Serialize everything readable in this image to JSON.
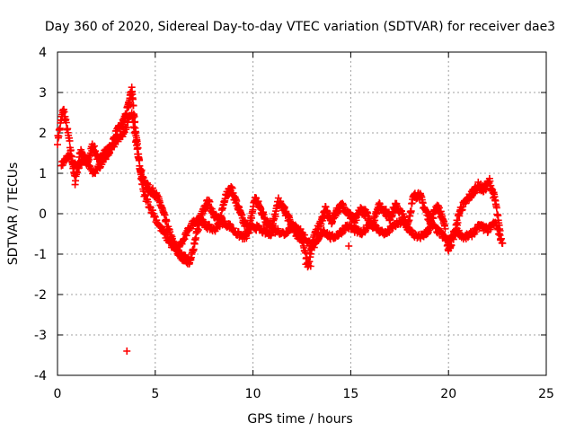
{
  "chart_data": {
    "type": "scatter",
    "title": "Day 360 of 2020, Sidereal Day-to-day VTEC variation (SDTVAR) for receiver dae3",
    "xlabel": "GPS time / hours",
    "ylabel": "SDTVAR / TECUs",
    "xlim": [
      0,
      25
    ],
    "ylim": [
      -4,
      4
    ],
    "xticks": [
      0,
      5,
      10,
      15,
      20,
      25
    ],
    "yticks": [
      -4,
      -3,
      -2,
      -1,
      0,
      1,
      2,
      3,
      4
    ],
    "grid": true,
    "marker": "plus",
    "color": "#ff0000",
    "series": [
      {
        "name": "SDTVAR",
        "trace_x": [
          0.0,
          0.3,
          0.6,
          0.9,
          1.2,
          1.5,
          1.8,
          2.1,
          2.4,
          2.7,
          3.0,
          3.3,
          3.6,
          3.8,
          4.0,
          4.2,
          4.4,
          4.7,
          5.0,
          5.3,
          5.6,
          5.9,
          6.2,
          6.5,
          6.8,
          7.1,
          7.4,
          7.7,
          8.0,
          8.3,
          8.6,
          8.9,
          9.2,
          9.5,
          9.8,
          10.1,
          10.4,
          10.7,
          11.0,
          11.3,
          11.6,
          11.9,
          12.2,
          12.5,
          12.8,
          13.1,
          13.4,
          13.7,
          14.0,
          14.3,
          14.6,
          14.9,
          15.2,
          15.5,
          15.8,
          16.1,
          16.4,
          16.7,
          17.0,
          17.3,
          17.6,
          17.9,
          18.2,
          18.5,
          18.8,
          19.1,
          19.4,
          19.7,
          20.0,
          20.3,
          20.6,
          20.9,
          21.2,
          21.5,
          21.8,
          22.1,
          22.4,
          22.7
        ],
        "trace_y": [
          1.8,
          2.6,
          1.8,
          0.8,
          1.6,
          1.2,
          1.7,
          1.3,
          1.5,
          1.6,
          2.0,
          2.2,
          2.6,
          3.1,
          2.0,
          1.2,
          0.8,
          0.6,
          0.5,
          0.2,
          -0.3,
          -0.7,
          -1.0,
          -1.1,
          -1.2,
          -0.5,
          0.0,
          0.3,
          0.0,
          -0.2,
          0.5,
          0.6,
          0.2,
          -0.2,
          -0.4,
          0.4,
          0.1,
          -0.2,
          -0.3,
          0.3,
          0.1,
          -0.2,
          -0.5,
          -0.6,
          -1.3,
          -0.6,
          -0.3,
          0.1,
          -0.2,
          0.1,
          0.2,
          0.0,
          -0.2,
          0.1,
          0.0,
          -0.3,
          0.2,
          0.1,
          -0.1,
          0.2,
          0.0,
          -0.3,
          0.4,
          0.5,
          0.1,
          -0.2,
          0.2,
          -0.1,
          -0.9,
          -0.5,
          0.1,
          0.3,
          0.5,
          0.7,
          0.6,
          0.8,
          0.3,
          -0.7
        ],
        "alt_trace_x": [
          0.2,
          0.6,
          1.0,
          1.4,
          1.8,
          2.2,
          2.6,
          3.0,
          3.4,
          3.8,
          4.1,
          4.4,
          4.8,
          5.2,
          5.6,
          6.0,
          6.4,
          6.8,
          7.2,
          7.6,
          8.0,
          8.4,
          8.8,
          9.2,
          9.6,
          10.0,
          10.4,
          10.8,
          11.2,
          11.6,
          12.0,
          12.4,
          12.8,
          13.2,
          13.6,
          14.0,
          14.4,
          14.8,
          15.2,
          15.6,
          16.0,
          16.4,
          16.8,
          17.2,
          17.6,
          18.0,
          18.4,
          18.8,
          19.2,
          19.6,
          20.0,
          20.4,
          20.8,
          21.2,
          21.6,
          22.0,
          22.4,
          22.8
        ],
        "alt_trace_y": [
          1.2,
          1.5,
          1.1,
          1.4,
          1.0,
          1.2,
          1.5,
          1.8,
          2.0,
          2.5,
          1.5,
          0.5,
          0.1,
          -0.3,
          -0.6,
          -0.9,
          -0.7,
          -0.3,
          -0.1,
          -0.3,
          -0.4,
          -0.2,
          -0.3,
          -0.5,
          -0.6,
          -0.3,
          -0.4,
          -0.5,
          -0.4,
          -0.5,
          -0.3,
          -0.4,
          -0.7,
          -0.8,
          -0.4,
          -0.6,
          -0.5,
          -0.3,
          -0.4,
          -0.5,
          -0.2,
          -0.4,
          -0.5,
          -0.3,
          -0.2,
          -0.4,
          -0.6,
          -0.5,
          -0.3,
          -0.5,
          -0.7,
          -0.4,
          -0.6,
          -0.5,
          -0.3,
          -0.4,
          -0.2,
          -0.8
        ],
        "outliers_x": [
          3.55,
          12.95,
          12.7,
          14.9
        ],
        "outliers_y": [
          -3.4,
          -1.3,
          -1.25,
          -0.8
        ]
      }
    ]
  }
}
